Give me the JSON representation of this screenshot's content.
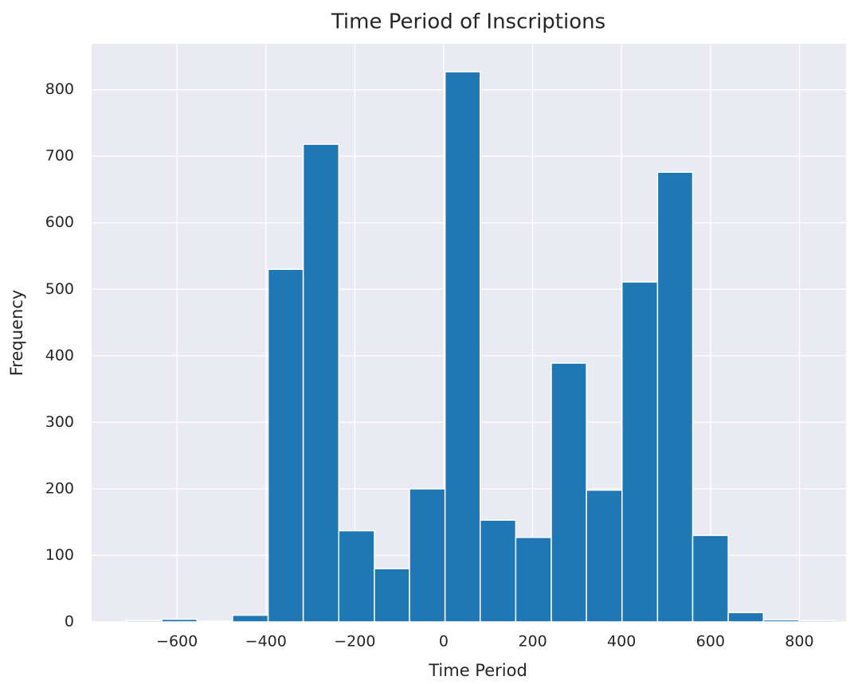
{
  "chart_data": {
    "type": "histogram",
    "title": "Time Period of Inscriptions",
    "x_label": "Time Period",
    "y_label": "Frequency",
    "bins": [
      -714,
      -634,
      -555,
      -475,
      -395,
      -316,
      -236,
      -156,
      -77,
      3,
      82,
      162,
      242,
      321,
      401,
      481,
      560,
      640,
      719,
      799,
      879
    ],
    "counts": [
      2,
      4,
      1,
      10,
      530,
      718,
      137,
      80,
      200,
      827,
      153,
      127,
      389,
      198,
      511,
      676,
      130,
      14,
      3,
      2
    ],
    "color": "#1f77b4",
    "xlim": [
      -792,
      905
    ],
    "ylim": [
      0,
      869
    ],
    "xticks": [
      {
        "value": -600,
        "label": "−600"
      },
      {
        "value": -400,
        "label": "−400"
      },
      {
        "value": -200,
        "label": "−200"
      },
      0,
      200,
      400,
      600,
      800
    ],
    "yticks": [
      0,
      100,
      200,
      300,
      400,
      500,
      600,
      700,
      800
    ],
    "grid": true
  }
}
